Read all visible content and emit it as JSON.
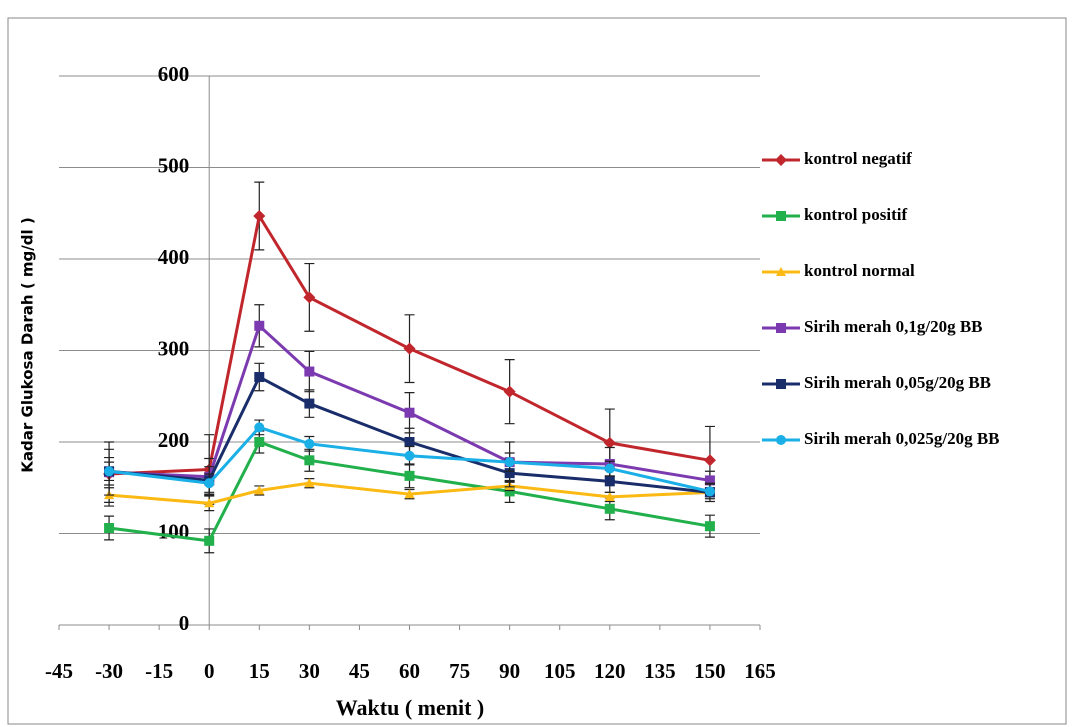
{
  "chart_data": {
    "type": "line",
    "x_label": "Waktu ( menit )",
    "y_label": "Kadar Glukosa Darah ( mg/dl )",
    "x": [
      -30,
      0,
      15,
      30,
      60,
      90,
      120,
      150
    ],
    "xlim": [
      -45,
      165
    ],
    "xticks": [
      -45,
      -30,
      -15,
      0,
      15,
      30,
      45,
      60,
      75,
      90,
      105,
      120,
      135,
      150,
      165
    ],
    "ylim": [
      0,
      600
    ],
    "yticks": [
      0,
      100,
      200,
      300,
      400,
      500,
      600
    ],
    "grid": true,
    "legend": "right",
    "series": [
      {
        "name": "kontrol negatif",
        "color": "#c0262c",
        "marker": "diamond",
        "values": [
          165,
          170,
          447,
          358,
          302,
          255,
          199,
          180
        ],
        "errors": [
          35,
          38,
          37,
          37,
          37,
          35,
          37,
          37
        ]
      },
      {
        "name": "kontrol positif",
        "color": "#21b04b",
        "marker": "square",
        "values": [
          106,
          92,
          200,
          180,
          163,
          146,
          127,
          108
        ],
        "errors": [
          13,
          13,
          12,
          12,
          13,
          12,
          12,
          12
        ]
      },
      {
        "name": "kontrol normal",
        "color": "#fbb914",
        "marker": "triangle",
        "values": [
          142,
          133,
          147,
          155,
          143,
          152,
          140,
          145
        ],
        "errors": [
          8,
          8,
          5,
          5,
          5,
          5,
          5,
          5
        ]
      },
      {
        "name": "Sirih merah 0,1g/20g BB",
        "color": "#7c3ab0",
        "marker": "square",
        "values": [
          167,
          162,
          327,
          277,
          232,
          178,
          176,
          158
        ],
        "errors": [
          25,
          20,
          23,
          22,
          22,
          22,
          18,
          10
        ]
      },
      {
        "name": "Sirih merah 0,05g/20g BB",
        "color": "#1a2d6b",
        "marker": "square",
        "values": [
          168,
          158,
          271,
          242,
          200,
          166,
          157,
          145
        ],
        "errors": [
          15,
          15,
          15,
          15,
          15,
          15,
          12,
          10
        ]
      },
      {
        "name": "Sirih merah 0,025g/20g BB",
        "color": "#1aafe6",
        "marker": "circle",
        "values": [
          168,
          155,
          216,
          198,
          185,
          178,
          171,
          146
        ],
        "errors": [
          10,
          10,
          8,
          8,
          10,
          10,
          8,
          8
        ]
      }
    ]
  }
}
